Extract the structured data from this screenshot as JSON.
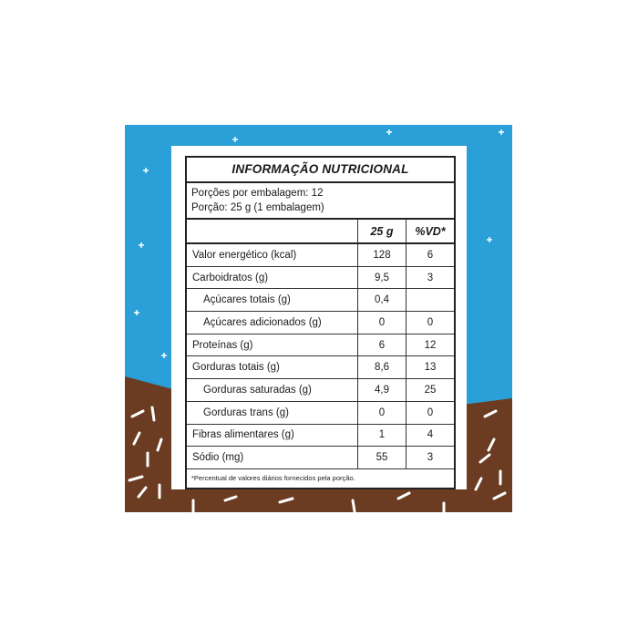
{
  "colors": {
    "sky": "#2a9fd8",
    "chocolate": "#6b3c22",
    "panel": "#ffffff",
    "text": "#1a1a1a"
  },
  "label": {
    "title": "INFORMAÇÃO NUTRICIONAL",
    "servings_per_package": "Porções por embalagem: 12",
    "serving_size": "Porção: 25 g (1 embalagem)",
    "columns": [
      "",
      "25 g",
      "%VD*"
    ],
    "rows": [
      {
        "name": "Valor energético (kcal)",
        "amount": "128",
        "dv": "6",
        "sub": false
      },
      {
        "name": "Carboidratos (g)",
        "amount": "9,5",
        "dv": "3",
        "sub": false
      },
      {
        "name": "Açúcares totais (g)",
        "amount": "0,4",
        "dv": "",
        "sub": true
      },
      {
        "name": "Açúcares adicionados (g)",
        "amount": "0",
        "dv": "0",
        "sub": true
      },
      {
        "name": "Proteínas (g)",
        "amount": "6",
        "dv": "12",
        "sub": false
      },
      {
        "name": "Gorduras totais (g)",
        "amount": "8,6",
        "dv": "13",
        "sub": false
      },
      {
        "name": "Gorduras saturadas (g)",
        "amount": "4,9",
        "dv": "25",
        "sub": true
      },
      {
        "name": "Gorduras trans (g)",
        "amount": "0",
        "dv": "0",
        "sub": true
      },
      {
        "name": "Fibras alimentares (g)",
        "amount": "1",
        "dv": "4",
        "sub": false
      },
      {
        "name": "Sódio (mg)",
        "amount": "55",
        "dv": "3",
        "sub": false
      }
    ],
    "footnote": "*Percentual de valores diários fornecidos pela porção."
  }
}
